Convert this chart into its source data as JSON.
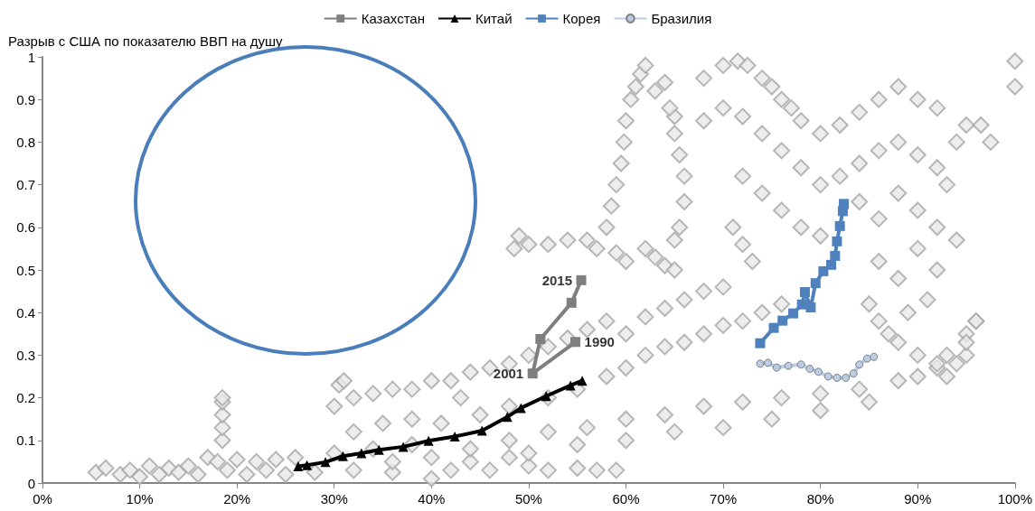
{
  "chart_data": {
    "type": "scatter",
    "ylabel": "Разрыв с США по показателю ВВП на душу",
    "xlim": [
      0,
      100
    ],
    "xticks": [
      {
        "value": 0,
        "label": "0%"
      },
      {
        "value": 10,
        "label": "10%"
      },
      {
        "value": 20,
        "label": "20%"
      },
      {
        "value": 30,
        "label": "30%"
      },
      {
        "value": 40,
        "label": "40%"
      },
      {
        "value": 50,
        "label": "50%"
      },
      {
        "value": 60,
        "label": "60%"
      },
      {
        "value": 70,
        "label": "70%"
      },
      {
        "value": 80,
        "label": "80%"
      },
      {
        "value": 90,
        "label": "90%"
      },
      {
        "value": 100,
        "label": "100%"
      }
    ],
    "ylim": [
      0,
      1
    ],
    "yticks": [
      0,
      0.1,
      0.2,
      0.3,
      0.4,
      0.5,
      0.6,
      0.7,
      0.8,
      0.9,
      1
    ],
    "grid": false,
    "legend": "top",
    "annotations": [
      {
        "text": "1990",
        "x": 54.8,
        "y": 0.331
      },
      {
        "text": "2001",
        "x": 50.4,
        "y": 0.257
      },
      {
        "text": "2015",
        "x": 55.4,
        "y": 0.476
      }
    ],
    "series": [
      {
        "marker": "diamond",
        "color": "#a6a6a6",
        "x": [
          5.5,
          6.5,
          8,
          9,
          10,
          11,
          12,
          13,
          14,
          15,
          16,
          17,
          18,
          19,
          20,
          21,
          22,
          23,
          24,
          25,
          26,
          28,
          30,
          32,
          34,
          36,
          38,
          40,
          42,
          44,
          46,
          48,
          50,
          52,
          55,
          57,
          59,
          18.5,
          18.5,
          18.5,
          18.5,
          18.5,
          30,
          30.5,
          31,
          32,
          34,
          36,
          38,
          40,
          42,
          44,
          46,
          48,
          50,
          52,
          54,
          56,
          58,
          60,
          62,
          64,
          66,
          68,
          70,
          32,
          35,
          38,
          41,
          43,
          45,
          48,
          52,
          55,
          58,
          60,
          62,
          64,
          66,
          68,
          70,
          72,
          74,
          76,
          36,
          40,
          44,
          48,
          52,
          56,
          60,
          64,
          68,
          72,
          76,
          80,
          84,
          88,
          92,
          95,
          50,
          55,
          60,
          65,
          70,
          75,
          80,
          85,
          90,
          93,
          95,
          96,
          48.5,
          49,
          50,
          52,
          54,
          56,
          57,
          59,
          60,
          62,
          63,
          64,
          65,
          58,
          58.5,
          59,
          59.5,
          59.8,
          60,
          60.5,
          61,
          61.5,
          62,
          63,
          64,
          65,
          64.5,
          65,
          65.5,
          66,
          66,
          65.5,
          65,
          68,
          70,
          71.5,
          72.5,
          74,
          75,
          76,
          77,
          78,
          80,
          82,
          84,
          86,
          88,
          90,
          92,
          68,
          70,
          72,
          74,
          76,
          78,
          80,
          82,
          84,
          86,
          88,
          90,
          92,
          94,
          95,
          72,
          74,
          76,
          78,
          80,
          84,
          86,
          88,
          90,
          92,
          93,
          71,
          72,
          73,
          86,
          88,
          90,
          92,
          94,
          96.5,
          97.5,
          100,
          100,
          85,
          86,
          87,
          88,
          90,
          92,
          93,
          94,
          95,
          96,
          89,
          91
        ],
        "values": [
          0.025,
          0.035,
          0.02,
          0.03,
          0.015,
          0.04,
          0.02,
          0.035,
          0.025,
          0.04,
          0.02,
          0.06,
          0.05,
          0.03,
          0.055,
          0.02,
          0.05,
          0.03,
          0.055,
          0.02,
          0.06,
          0.025,
          0.07,
          0.03,
          0.08,
          0.025,
          0.09,
          0.01,
          0.03,
          0.05,
          0.03,
          0.06,
          0.04,
          0.03,
          0.035,
          0.03,
          0.03,
          0.1,
          0.13,
          0.16,
          0.19,
          0.2,
          0.18,
          0.23,
          0.24,
          0.2,
          0.21,
          0.22,
          0.22,
          0.24,
          0.24,
          0.26,
          0.27,
          0.28,
          0.3,
          0.32,
          0.34,
          0.36,
          0.38,
          0.35,
          0.39,
          0.41,
          0.43,
          0.45,
          0.46,
          0.12,
          0.14,
          0.15,
          0.14,
          0.2,
          0.16,
          0.18,
          0.2,
          0.22,
          0.25,
          0.27,
          0.3,
          0.32,
          0.33,
          0.35,
          0.37,
          0.38,
          0.4,
          0.42,
          0.05,
          0.06,
          0.08,
          0.1,
          0.12,
          0.13,
          0.15,
          0.16,
          0.18,
          0.19,
          0.2,
          0.21,
          0.22,
          0.24,
          0.27,
          0.3,
          0.07,
          0.09,
          0.1,
          0.12,
          0.13,
          0.15,
          0.17,
          0.19,
          0.25,
          0.3,
          0.35,
          0.38,
          0.55,
          0.58,
          0.56,
          0.56,
          0.57,
          0.57,
          0.55,
          0.54,
          0.52,
          0.55,
          0.53,
          0.51,
          0.5,
          0.6,
          0.65,
          0.7,
          0.75,
          0.8,
          0.85,
          0.9,
          0.93,
          0.96,
          0.98,
          0.92,
          0.94,
          0.86,
          0.88,
          0.82,
          0.77,
          0.72,
          0.66,
          0.6,
          0.57,
          0.95,
          0.98,
          0.99,
          0.98,
          0.95,
          0.93,
          0.9,
          0.88,
          0.85,
          0.82,
          0.84,
          0.87,
          0.9,
          0.93,
          0.9,
          0.88,
          0.85,
          0.88,
          0.86,
          0.82,
          0.78,
          0.74,
          0.7,
          0.72,
          0.75,
          0.78,
          0.8,
          0.77,
          0.74,
          0.8,
          0.84,
          0.72,
          0.68,
          0.64,
          0.6,
          0.58,
          0.66,
          0.62,
          0.68,
          0.64,
          0.6,
          0.7,
          0.6,
          0.56,
          0.52,
          0.52,
          0.48,
          0.55,
          0.5,
          0.57,
          0.84,
          0.8,
          0.99,
          0.93,
          0.42,
          0.38,
          0.35,
          0.33,
          0.3,
          0.28,
          0.25,
          0.28,
          0.33,
          0.38,
          0.4,
          0.43
        ]
      },
      {
        "type": "line",
        "name": "Казахстан",
        "marker": "square",
        "color": "#7f7f7f",
        "x": [
          54.8,
          50.4,
          51.2,
          54.4,
          55.4
        ],
        "values": [
          0.331,
          0.257,
          0.338,
          0.423,
          0.476
        ]
      },
      {
        "type": "line",
        "name": "Китай",
        "marker": "triangle",
        "color": "#000000",
        "x": [
          26.3,
          27.2,
          29.1,
          30.9,
          32.8,
          34.6,
          37.1,
          39.7,
          42.4,
          45.2,
          47.8,
          49.2,
          51.8,
          54.3,
          55.5
        ],
        "values": [
          0.039,
          0.042,
          0.049,
          0.063,
          0.07,
          0.078,
          0.085,
          0.099,
          0.109,
          0.123,
          0.155,
          0.176,
          0.204,
          0.229,
          0.24
        ]
      },
      {
        "type": "line",
        "name": "Корея",
        "marker": "square",
        "color": "#4f81bd",
        "x": [
          73.8,
          75.2,
          76.1,
          77.2,
          78.1,
          78.4,
          79,
          79.5,
          80.3,
          81.1,
          81.5,
          81.7,
          82,
          82.3,
          82.4
        ],
        "values": [
          0.328,
          0.364,
          0.381,
          0.398,
          0.419,
          0.448,
          0.412,
          0.469,
          0.497,
          0.512,
          0.533,
          0.567,
          0.603,
          0.638,
          0.655
        ]
      },
      {
        "type": "line",
        "name": "Бразилия",
        "marker": "circle",
        "color": "#b9cde5",
        "x": [
          73.8,
          74.6,
          75.5,
          76.7,
          78,
          78.9,
          79.8,
          80.8,
          81.7,
          82.6,
          83.4,
          84,
          84.8,
          85.5
        ],
        "values": [
          0.28,
          0.282,
          0.271,
          0.275,
          0.278,
          0.268,
          0.261,
          0.25,
          0.247,
          0.247,
          0.257,
          0.278,
          0.292,
          0.296
        ]
      }
    ]
  }
}
